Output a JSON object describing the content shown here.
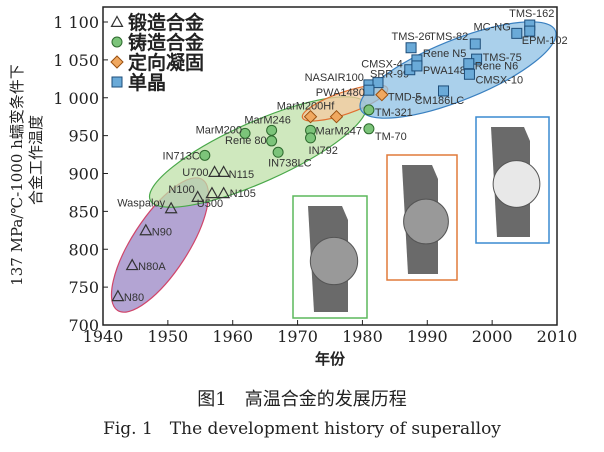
{
  "chart_data": {
    "type": "scatter",
    "xlabel": "年份",
    "ylabel": [
      "137 MPa/℃-1000 h蠕变条件下",
      "合金工作温度"
    ],
    "xlim": [
      1940,
      2010
    ],
    "ylim": [
      700,
      1120
    ],
    "xticks": [
      "1940",
      "1950",
      "1960",
      "1970",
      "1980",
      "1990",
      "2000",
      "2010"
    ],
    "yticks": [
      "700",
      "750",
      "800",
      "850",
      "900",
      "950",
      "1 000",
      "1 050",
      "1 100"
    ],
    "grid": false,
    "legend_position": "top-left",
    "series": [
      {
        "name": "锻造合金",
        "marker": "triangle",
        "color": "#8c80b8",
        "region_color": "#9a86c4",
        "points": [
          {
            "x": 1942.3,
            "y": 738,
            "label": "N80"
          },
          {
            "x": 1944.5,
            "y": 779,
            "label": "N80A"
          },
          {
            "x": 1946.6,
            "y": 825,
            "label": "N90"
          },
          {
            "x": 1950.5,
            "y": 854,
            "label": "Waspaloy"
          },
          {
            "x": 1954.6,
            "y": 869,
            "label": "N100"
          },
          {
            "x": 1956.8,
            "y": 874,
            "label": "U500"
          },
          {
            "x": 1958.6,
            "y": 874,
            "label": "N105"
          },
          {
            "x": 1957.2,
            "y": 902,
            "label": "U700"
          },
          {
            "x": 1958.6,
            "y": 902,
            "label": "N115"
          }
        ]
      },
      {
        "name": "铸造合金",
        "marker": "circle",
        "color": "#7cc47a",
        "region_color": "#bfe0a8",
        "points": [
          {
            "x": 1955.7,
            "y": 924,
            "label": "IN713C"
          },
          {
            "x": 1961.9,
            "y": 953,
            "label": "MarM200"
          },
          {
            "x": 1966,
            "y": 957,
            "label": "MarM246"
          },
          {
            "x": 1966,
            "y": 943,
            "label": "Rene 80"
          },
          {
            "x": 1967,
            "y": 928,
            "label": "IN738LC"
          },
          {
            "x": 1972,
            "y": 957,
            "label": "MarM247"
          },
          {
            "x": 1972,
            "y": 947,
            "label": "IN792"
          },
          {
            "x": 1981,
            "y": 984,
            "label": "TM-321"
          },
          {
            "x": 1981,
            "y": 959,
            "label": "TM-70"
          }
        ]
      },
      {
        "name": "定向凝固",
        "marker": "diamond",
        "color": "#f0a860",
        "region_color": "#f5c9a0",
        "points": [
          {
            "x": 1972,
            "y": 975,
            "label": "MarM200Hf"
          },
          {
            "x": 1976,
            "y": 975,
            "label": ""
          },
          {
            "x": 1983,
            "y": 1004,
            "label": "TMD-5"
          }
        ]
      },
      {
        "name": "单晶",
        "marker": "square",
        "color": "#6aaad8",
        "region_color": "#8ec0e4",
        "points": [
          {
            "x": 1981,
            "y": 1017,
            "label": "NASAIR100"
          },
          {
            "x": 1982.4,
            "y": 1020,
            "label": "SRR-99"
          },
          {
            "x": 1981,
            "y": 1010,
            "label": "PWA1480"
          },
          {
            "x": 1987.3,
            "y": 1037,
            "label": "CMSX-4"
          },
          {
            "x": 1988.4,
            "y": 1050,
            "label": "Rene N5"
          },
          {
            "x": 1988.4,
            "y": 1042,
            "label": "PWA1484"
          },
          {
            "x": 1987.5,
            "y": 1066,
            "label": "TMS-26"
          },
          {
            "x": 1997.4,
            "y": 1071,
            "label": "TMS-82"
          },
          {
            "x": 1997.6,
            "y": 1051,
            "label": "TMS-75"
          },
          {
            "x": 1996.4,
            "y": 1045,
            "label": "Rene N6"
          },
          {
            "x": 1996.5,
            "y": 1031,
            "label": "CMSX-10"
          },
          {
            "x": 1992.5,
            "y": 1009,
            "label": "CM186LC"
          },
          {
            "x": 2003.8,
            "y": 1085,
            "label": "MC-NG"
          },
          {
            "x": 2005.8,
            "y": 1096,
            "label": "TMS-162"
          },
          {
            "x": 2005.8,
            "y": 1088,
            "label": "EPM-102"
          }
        ]
      }
    ],
    "insets": [
      {
        "frame_color": "#5cb85c"
      },
      {
        "frame_color": "#e07a3a"
      },
      {
        "frame_color": "#3a8ad0"
      }
    ]
  },
  "caption": {
    "cn": "图1　高温合金的发展历程",
    "en": "Fig. 1　The development history of superalloy"
  }
}
